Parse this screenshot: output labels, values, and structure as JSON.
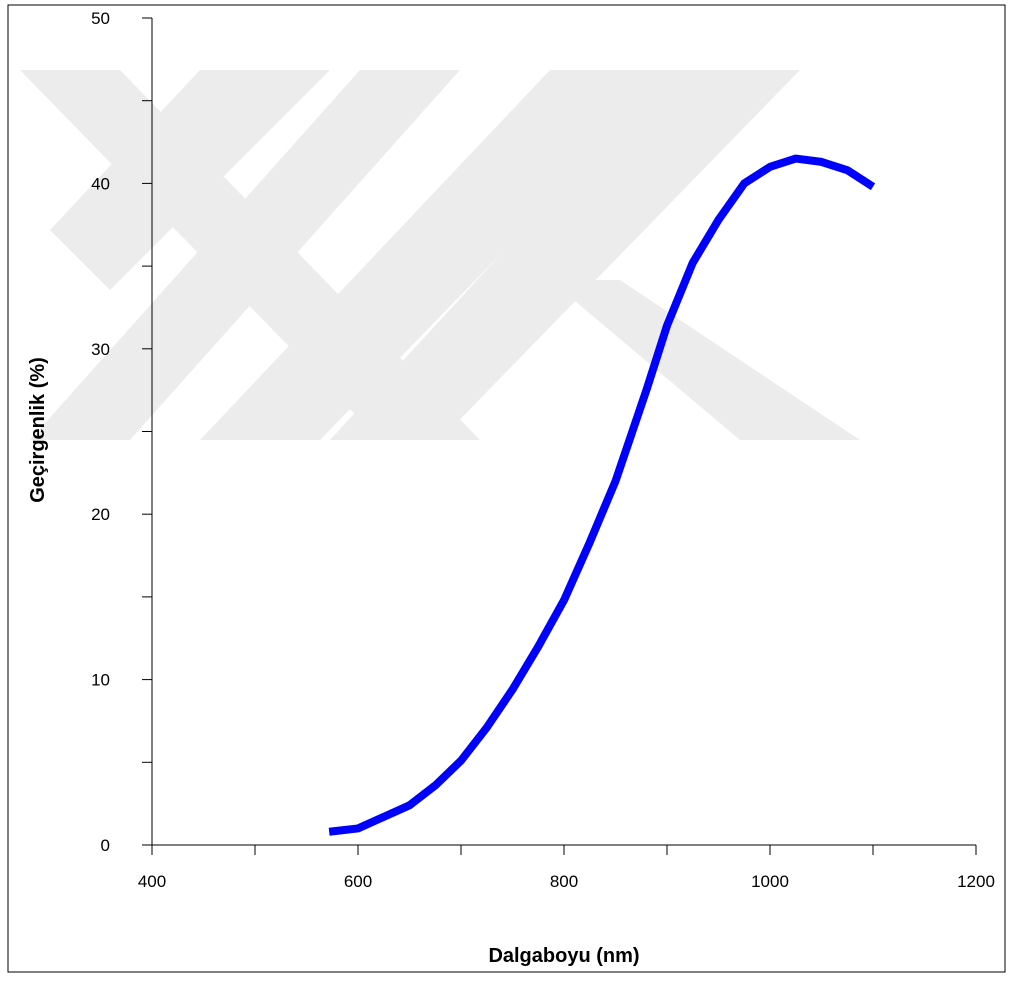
{
  "chart_data": {
    "type": "line",
    "xlabel": "Dalgaboyu (nm)",
    "ylabel": "Geçirgenlik (%)",
    "xlim": [
      400,
      1200
    ],
    "xticks": [
      400,
      600,
      800,
      1000,
      1200
    ],
    "xminorticks": [
      500,
      700,
      900,
      1100
    ],
    "ylim": [
      0,
      50
    ],
    "yticks": [
      0,
      10,
      20,
      30,
      40,
      50
    ],
    "yminorticks": [
      5,
      15,
      25,
      35,
      45
    ],
    "series": [
      {
        "color": "#0000ff",
        "x": [
          572,
          600,
          650,
          675,
          700,
          725,
          750,
          775,
          800,
          825,
          850,
          880,
          900,
          925,
          950,
          975,
          1000,
          1025,
          1050,
          1075,
          1100
        ],
        "values": [
          0.8,
          1.0,
          2.4,
          3.6,
          5.1,
          7.1,
          9.4,
          12,
          14.8,
          18.3,
          22,
          27.5,
          31.4,
          35.2,
          37.8,
          40.0,
          41.0,
          41.5,
          41.3,
          40.8,
          39.8
        ]
      }
    ]
  }
}
